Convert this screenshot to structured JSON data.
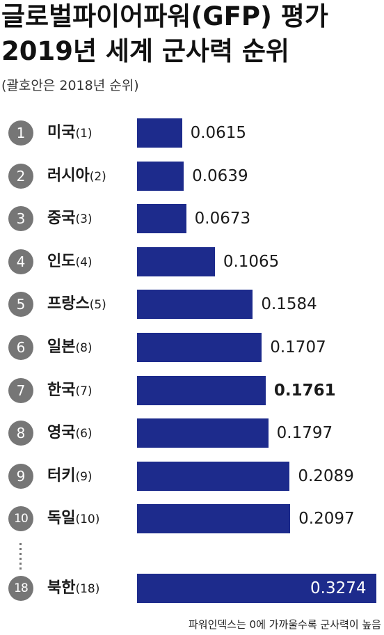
{
  "title_line1": "글로벌파이어파워(GFP) 평가",
  "title_line2": "2019년 세계 군사력 순위",
  "subtitle": "(괄호안은 2018년 순위)",
  "footnote": "파워인덱스는 0에 가까울수록 군사력이 높음",
  "colors": {
    "bar": "#1d2b8c",
    "rank_circle": "#767676"
  },
  "chart_data": {
    "type": "bar",
    "orientation": "horizontal",
    "title": "글로벌파이어파워(GFP) 평가 2019년 세계 군사력 순위",
    "subtitle": "(괄호안은 2018년 순위)",
    "rows": [
      {
        "rank": "1",
        "country": "미국",
        "prev": "(1)",
        "value": 0.0615,
        "label": "0.0615"
      },
      {
        "rank": "2",
        "country": "러시아",
        "prev": "(2)",
        "value": 0.0639,
        "label": "0.0639"
      },
      {
        "rank": "3",
        "country": "중국",
        "prev": "(3)",
        "value": 0.0673,
        "label": "0.0673"
      },
      {
        "rank": "4",
        "country": "인도",
        "prev": "(4)",
        "value": 0.1065,
        "label": "0.1065"
      },
      {
        "rank": "5",
        "country": "프랑스",
        "prev": "(5)",
        "value": 0.1584,
        "label": "0.1584"
      },
      {
        "rank": "6",
        "country": "일본",
        "prev": "(8)",
        "value": 0.1707,
        "label": "0.1707"
      },
      {
        "rank": "7",
        "country": "한국",
        "prev": "(7)",
        "value": 0.1761,
        "label": "0.1761",
        "highlight": true
      },
      {
        "rank": "8",
        "country": "영국",
        "prev": "(6)",
        "value": 0.1797,
        "label": "0.1797"
      },
      {
        "rank": "9",
        "country": "터키",
        "prev": "(9)",
        "value": 0.2089,
        "label": "0.2089"
      },
      {
        "rank": "10",
        "country": "독일",
        "prev": "(10)",
        "value": 0.2097,
        "label": "0.2097"
      },
      {
        "rank": "18",
        "country": "북한",
        "prev": "(18)",
        "value": 0.3274,
        "label": "0.3274",
        "label_inside": true
      }
    ],
    "gap_after_rank": "10",
    "grid": false,
    "legend": "none"
  }
}
